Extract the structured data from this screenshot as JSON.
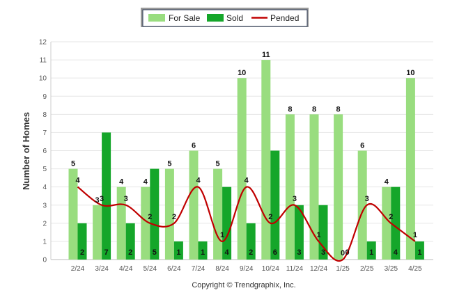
{
  "chart_data": {
    "type": "bar",
    "ylabel": "Number of Homes",
    "xlabel": "",
    "ylim": [
      0,
      12
    ],
    "yticks": [
      "0",
      "1",
      "2",
      "3",
      "4",
      "5",
      "6",
      "7",
      "8",
      "9",
      "10",
      "11",
      "12"
    ],
    "categories": [
      "2/24",
      "3/24",
      "4/24",
      "5/24",
      "6/24",
      "7/24",
      "8/24",
      "9/24",
      "10/24",
      "11/24",
      "12/24",
      "1/25",
      "2/25",
      "3/25",
      "4/25"
    ],
    "series": [
      {
        "name": "For Sale",
        "type": "bar",
        "color": "#99dd7f",
        "values": [
          5,
          3,
          4,
          4,
          5,
          6,
          5,
          10,
          11,
          8,
          8,
          8,
          6,
          4,
          10
        ]
      },
      {
        "name": "Sold",
        "type": "bar",
        "color": "#15a62a",
        "values": [
          2,
          7,
          2,
          5,
          1,
          1,
          4,
          2,
          6,
          3,
          3,
          0,
          1,
          4,
          1
        ]
      },
      {
        "name": "Pended",
        "type": "line",
        "color": "#c00000",
        "values": [
          4,
          3,
          3,
          2,
          2,
          4,
          1,
          4,
          2,
          3,
          1,
          0,
          3,
          2,
          1
        ]
      }
    ],
    "legend_position": "top-center",
    "grid": true,
    "footer": "Copyright © Trendgraphix, Inc."
  }
}
